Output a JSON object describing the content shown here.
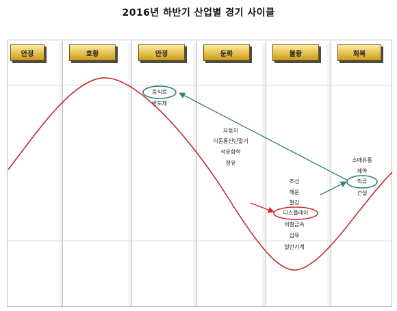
{
  "title": "2016년 하반기 산업별 경기 사이클",
  "phases": [
    "안정",
    "호황",
    "안정",
    "둔화",
    "불황",
    "회복"
  ],
  "industry_labels": {
    "food": "음식료",
    "semiconductor": "반도체",
    "auto": "자동차",
    "mobile": "이동통신단말기",
    "petrochem": "석유화학",
    "refining": "정유",
    "shipbuilding": "조선",
    "shipping": "해운",
    "steel": "철강",
    "display": "디스플레이",
    "nonferrous": "비철금속",
    "textile": "섬유",
    "machinery": "일반기계",
    "retail": "소매유통",
    "pharma": "제약",
    "apparel": "의류",
    "construction": "건설"
  },
  "colors": {
    "cycle_curve": "#c0272d",
    "arrow_teal": "#2e7d7a",
    "arrow_red": "#d0282e",
    "phase_gold": "#e0b83a"
  }
}
